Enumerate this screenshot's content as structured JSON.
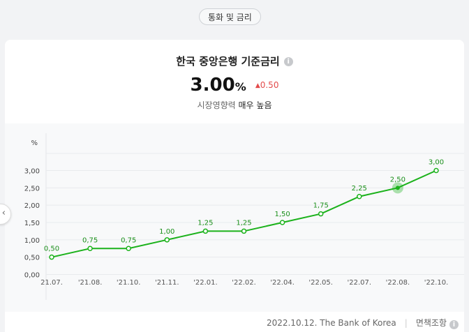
{
  "category_tag": "통화 및 금리",
  "title": "한국 중앙은행 기준금리",
  "info_glyph": "i",
  "rate": {
    "value": "3.00",
    "unit": "%",
    "change": "0.50"
  },
  "influence": {
    "label": "시장영향력",
    "level": "매우 높음"
  },
  "footer": {
    "date_source": "2022.10.12. The Bank of Korea",
    "disclaimer": "면책조항"
  },
  "chart_data": {
    "type": "line",
    "y_unit": "%",
    "ylim": [
      0,
      3.0
    ],
    "y_ticks": [
      "0,00",
      "0,50",
      "1,00",
      "1,50",
      "2,00",
      "2,50",
      "3,00"
    ],
    "categories": [
      "'21.07.",
      "'21.08.",
      "'21.10.",
      "'21.11.",
      "'22.01.",
      "'22.02.",
      "'22.04.",
      "'22.05.",
      "'22.07.",
      "'22.08.",
      "'22.10."
    ],
    "x_labels": [
      "21.07.",
      "'21.08.",
      "'21.10.",
      "'21.11.",
      "'22.01.",
      "'22.02.",
      "'22.04.",
      "'22.05.",
      "'22.07.",
      "'22.08.",
      "'22.10."
    ],
    "values": [
      0.5,
      0.75,
      0.75,
      1.0,
      1.25,
      1.25,
      1.5,
      1.75,
      2.25,
      2.5,
      3.0
    ],
    "value_labels": [
      "0,50",
      "0,75",
      "0,75",
      "1,00",
      "1,25",
      "1,25",
      "1,50",
      "1,75",
      "2,25",
      "2,50",
      "3,00"
    ],
    "highlight_index": 9,
    "line_color": "#1bb21b",
    "grid": true
  },
  "colors": {
    "accent": "#1bb21b",
    "up": "#e34b4b"
  }
}
